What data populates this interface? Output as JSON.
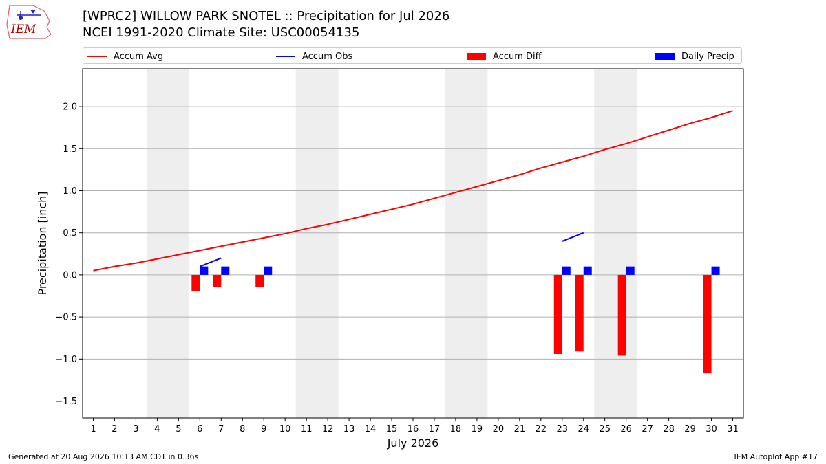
{
  "header": {
    "logo_text": "IEM",
    "title_line1": "[WPRC2] WILLOW PARK SNOTEL :: Precipitation for Jul 2026",
    "title_line2": "NCEI 1991-2020 Climate Site: USC00054135"
  },
  "legend": {
    "position": "top, spanning full width above plot",
    "items": [
      {
        "label": "Accum Avg",
        "kind": "line",
        "color": "#ff0000"
      },
      {
        "label": "Accum Obs",
        "kind": "line",
        "color": "#0000ff"
      },
      {
        "label": "Accum Diff",
        "kind": "box",
        "color": "#ff0000"
      },
      {
        "label": "Daily Precip",
        "kind": "box",
        "color": "#0000ff"
      }
    ]
  },
  "footer": {
    "left": "Generated at 20 Aug 2026 10:13 AM CDT in 0.36s",
    "right": "IEM Autoplot App #17"
  },
  "chart_data": {
    "type": "bar",
    "xlabel": "July 2026",
    "ylabel": "Precipitation [inch]",
    "xlim": [
      0.5,
      31.5
    ],
    "ylim": [
      -1.7,
      2.45
    ],
    "grid": "horizontal",
    "x_ticks": [
      "1",
      "2",
      "3",
      "4",
      "5",
      "6",
      "7",
      "8",
      "9",
      "10",
      "11",
      "12",
      "13",
      "14",
      "15",
      "16",
      "17",
      "18",
      "19",
      "20",
      "21",
      "22",
      "23",
      "24",
      "25",
      "26",
      "27",
      "28",
      "29",
      "30",
      "31"
    ],
    "y_ticks": [
      -1.5,
      -1.0,
      -0.5,
      0.0,
      0.5,
      1.0,
      1.5,
      2.0
    ],
    "y_tick_labels": [
      "−1.5",
      "−1.0",
      "−0.5",
      "0.0",
      "0.5",
      "1.0",
      "1.5",
      "2.0"
    ],
    "weekend_shading": [
      [
        3.5,
        5.5
      ],
      [
        10.5,
        12.5
      ],
      [
        17.5,
        19.5
      ],
      [
        24.5,
        26.5
      ]
    ],
    "weekend_color": "#eeeeee",
    "series": [
      {
        "name": "Accum Avg",
        "kind": "line",
        "color": "#ff0000",
        "x": [
          1,
          2,
          3,
          4,
          5,
          6,
          7,
          8,
          9,
          10,
          11,
          12,
          13,
          14,
          15,
          16,
          17,
          18,
          19,
          20,
          21,
          22,
          23,
          24,
          25,
          26,
          27,
          28,
          29,
          30,
          31
        ],
        "y": [
          0.05,
          0.1,
          0.14,
          0.19,
          0.24,
          0.29,
          0.34,
          0.39,
          0.44,
          0.49,
          0.55,
          0.6,
          0.66,
          0.72,
          0.78,
          0.84,
          0.91,
          0.98,
          1.05,
          1.12,
          1.19,
          1.27,
          1.34,
          1.41,
          1.49,
          1.56,
          1.64,
          1.72,
          1.8,
          1.87,
          1.95
        ]
      },
      {
        "name": "Accum Obs",
        "kind": "line",
        "color": "#0000ff",
        "segments": [
          {
            "x": [
              6,
              7
            ],
            "y": [
              0.1,
              0.2
            ]
          },
          {
            "x": [
              23,
              24
            ],
            "y": [
              0.4,
              0.5
            ]
          }
        ]
      },
      {
        "name": "Accum Diff",
        "kind": "bar",
        "color": "#ff0000",
        "offset": "left",
        "x": [
          6,
          7,
          9,
          23,
          24,
          26,
          30
        ],
        "y": [
          -0.19,
          -0.14,
          -0.14,
          -0.94,
          -0.91,
          -0.96,
          -1.17
        ]
      },
      {
        "name": "Daily Precip",
        "kind": "bar",
        "color": "#0000ff",
        "offset": "right",
        "x": [
          6,
          7,
          9,
          23,
          24,
          26,
          30
        ],
        "y": [
          0.1,
          0.1,
          0.1,
          0.1,
          0.1,
          0.1,
          0.1
        ]
      }
    ]
  }
}
